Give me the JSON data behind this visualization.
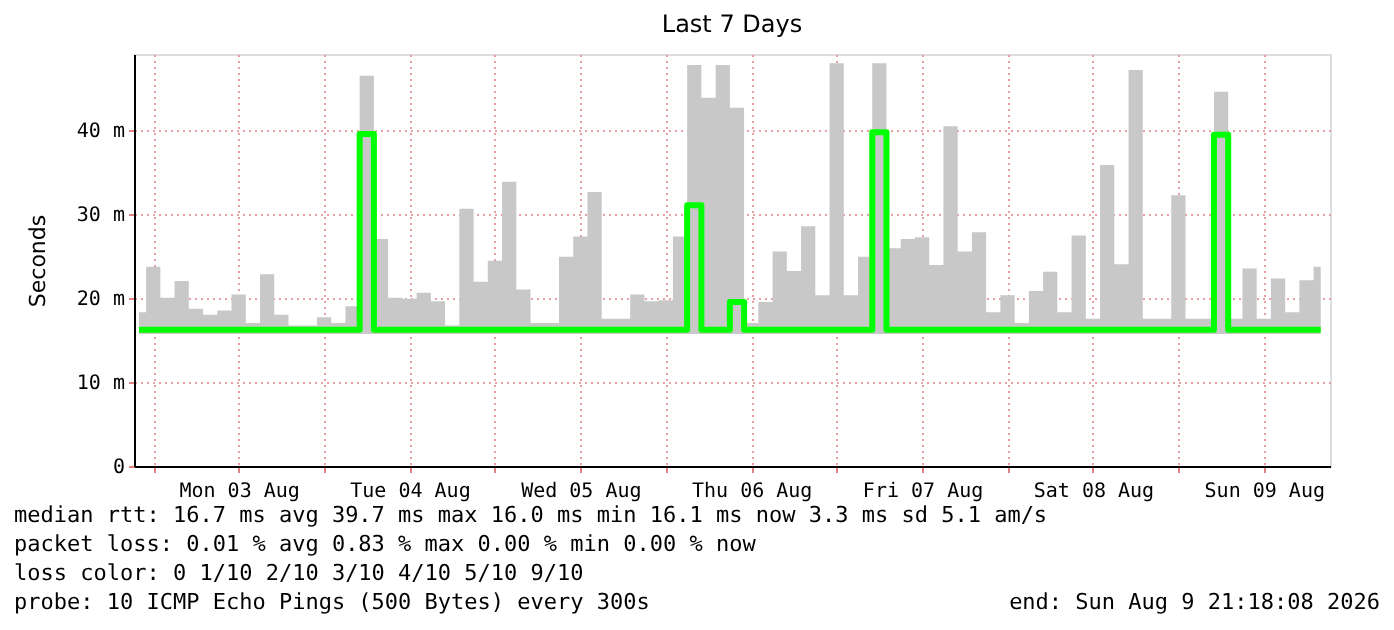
{
  "chart_data": {
    "type": "step",
    "title": "Last 7 Days",
    "ylabel": "Seconds",
    "xlim": [
      "2026-08-02T21:18",
      "2026-08-09T21:18"
    ],
    "xticks": [
      {
        "value": "2026-08-03T00:00",
        "label": null
      },
      {
        "value": "2026-08-03T12:00",
        "label": "Mon 03 Aug"
      },
      {
        "value": "2026-08-04T00:00",
        "label": null
      },
      {
        "value": "2026-08-04T12:00",
        "label": "Tue 04 Aug"
      },
      {
        "value": "2026-08-05T00:00",
        "label": null
      },
      {
        "value": "2026-08-05T12:00",
        "label": "Wed 05 Aug"
      },
      {
        "value": "2026-08-06T00:00",
        "label": null
      },
      {
        "value": "2026-08-06T12:00",
        "label": "Thu 06 Aug"
      },
      {
        "value": "2026-08-07T00:00",
        "label": null
      },
      {
        "value": "2026-08-07T12:00",
        "label": "Fri 07 Aug"
      },
      {
        "value": "2026-08-08T00:00",
        "label": null
      },
      {
        "value": "2026-08-08T12:00",
        "label": "Sat 08 Aug"
      },
      {
        "value": "2026-08-09T00:00",
        "label": null
      },
      {
        "value": "2026-08-09T12:00",
        "label": "Sun 09 Aug"
      }
    ],
    "ylim": [
      0,
      49
    ],
    "yticks": [
      {
        "value": 0,
        "label": "0"
      },
      {
        "value": 10,
        "label": "10 m"
      },
      {
        "value": 20,
        "label": "20 m"
      },
      {
        "value": 30,
        "label": "30 m"
      },
      {
        "value": 40,
        "label": "40 m"
      }
    ],
    "grid": true,
    "x": [
      "2026-08-02T22:00",
      "2026-08-03T00:00",
      "2026-08-03T02:00",
      "2026-08-03T04:00",
      "2026-08-03T06:00",
      "2026-08-03T08:00",
      "2026-08-03T10:00",
      "2026-08-03T12:00",
      "2026-08-03T14:00",
      "2026-08-03T16:00",
      "2026-08-03T18:00",
      "2026-08-03T20:00",
      "2026-08-03T22:00",
      "2026-08-04T00:00",
      "2026-08-04T02:00",
      "2026-08-04T04:00",
      "2026-08-04T06:00",
      "2026-08-04T08:00",
      "2026-08-04T10:00",
      "2026-08-04T12:00",
      "2026-08-04T14:00",
      "2026-08-04T16:00",
      "2026-08-04T18:00",
      "2026-08-04T20:00",
      "2026-08-04T22:00",
      "2026-08-05T00:00",
      "2026-08-05T02:00",
      "2026-08-05T04:00",
      "2026-08-05T06:00",
      "2026-08-05T08:00",
      "2026-08-05T10:00",
      "2026-08-05T12:00",
      "2026-08-05T14:00",
      "2026-08-05T16:00",
      "2026-08-05T18:00",
      "2026-08-05T20:00",
      "2026-08-05T22:00",
      "2026-08-06T00:00",
      "2026-08-06T02:00",
      "2026-08-06T04:00",
      "2026-08-06T06:00",
      "2026-08-06T08:00",
      "2026-08-06T10:00",
      "2026-08-06T12:00",
      "2026-08-06T14:00",
      "2026-08-06T16:00",
      "2026-08-06T18:00",
      "2026-08-06T20:00",
      "2026-08-06T22:00",
      "2026-08-07T00:00",
      "2026-08-07T02:00",
      "2026-08-07T04:00",
      "2026-08-07T06:00",
      "2026-08-07T08:00",
      "2026-08-07T10:00",
      "2026-08-07T12:00",
      "2026-08-07T14:00",
      "2026-08-07T16:00",
      "2026-08-07T18:00",
      "2026-08-07T20:00",
      "2026-08-07T22:00",
      "2026-08-08T00:00",
      "2026-08-08T02:00",
      "2026-08-08T04:00",
      "2026-08-08T06:00",
      "2026-08-08T08:00",
      "2026-08-08T10:00",
      "2026-08-08T12:00",
      "2026-08-08T14:00",
      "2026-08-08T16:00",
      "2026-08-08T18:00",
      "2026-08-08T20:00",
      "2026-08-08T22:00",
      "2026-08-09T00:00",
      "2026-08-09T02:00",
      "2026-08-09T04:00",
      "2026-08-09T06:00",
      "2026-08-09T08:00",
      "2026-08-09T10:00",
      "2026-08-09T12:00",
      "2026-08-09T14:00",
      "2026-08-09T16:00",
      "2026-08-09T18:00",
      "2026-08-09T20:00"
    ],
    "series": [
      {
        "color": "#00ff00",
        "values": [
          16.2,
          16.2,
          16.2,
          16.2,
          16.2,
          16.2,
          16.2,
          16.2,
          16.2,
          16.2,
          16.2,
          16.2,
          16.2,
          16.2,
          16.2,
          16.2,
          39.5,
          16.2,
          16.2,
          16.2,
          16.2,
          16.2,
          16.2,
          16.2,
          16.2,
          16.2,
          16.2,
          16.2,
          16.2,
          16.2,
          16.2,
          16.2,
          16.2,
          16.2,
          16.2,
          16.2,
          16.2,
          16.2,
          16.2,
          31,
          16.2,
          16.2,
          19.5,
          16.2,
          16.2,
          16.2,
          16.2,
          16.2,
          16.2,
          16.2,
          16.2,
          16.2,
          39.7,
          16.2,
          16.2,
          16.2,
          16.2,
          16.2,
          16.2,
          16.2,
          16.2,
          16.2,
          16.2,
          16.2,
          16.2,
          16.2,
          16.2,
          16.2,
          16.2,
          16.2,
          16.2,
          16.2,
          16.2,
          16.2,
          16.2,
          16.2,
          39.4,
          16.2,
          16.2,
          16.2,
          16.2,
          16.2,
          16.2,
          16.2
        ],
        "lower": [
          15.7,
          15.7,
          15.7,
          15.7,
          15.7,
          15.7,
          15.7,
          15.7,
          15.7,
          15.7,
          15.7,
          15.7,
          15.7,
          15.7,
          15.7,
          15.7,
          15.7,
          15.7,
          15.7,
          15.7,
          15.7,
          15.7,
          15.7,
          15.7,
          15.7,
          15.7,
          15.7,
          15.7,
          15.7,
          15.7,
          15.7,
          15.7,
          15.7,
          15.7,
          15.7,
          15.7,
          15.7,
          15.7,
          15.7,
          15.7,
          15.7,
          15.7,
          15.7,
          15.7,
          15.7,
          15.7,
          15.7,
          15.7,
          15.7,
          15.7,
          15.7,
          15.7,
          15.7,
          15.7,
          15.7,
          15.7,
          15.7,
          15.7,
          15.7,
          15.7,
          15.7,
          15.7,
          15.7,
          15.7,
          15.7,
          15.7,
          15.7,
          15.7,
          15.7,
          15.7,
          15.7,
          15.7,
          15.7,
          15.7,
          15.7,
          15.7,
          15.7,
          15.7,
          15.7,
          15.7,
          15.7,
          15.7,
          15.7,
          15.7
        ],
        "upper": [
          18.3,
          23.7,
          20,
          22,
          18.7,
          18,
          18.5,
          20.4,
          17,
          22.8,
          18,
          16.7,
          16.7,
          17.7,
          17,
          19,
          46.4,
          27,
          20,
          19.9,
          20.6,
          19.6,
          16.7,
          30.6,
          21.9,
          24.4,
          33.8,
          21,
          17,
          17,
          24.9,
          27.3,
          32.6,
          17.5,
          17.5,
          20.4,
          19.6,
          19.7,
          27.3,
          47.7,
          43.8,
          47.7,
          42.6,
          17,
          19.5,
          25.5,
          23.2,
          28.5,
          20.3,
          47.9,
          20.3,
          24.9,
          47.9,
          25.9,
          27,
          27.2,
          23.9,
          40.4,
          25.5,
          27.8,
          18.3,
          20.3,
          17,
          20.8,
          23.1,
          18.3,
          27.4,
          17.5,
          35.8,
          24,
          47.1,
          17.5,
          17.5,
          32.2,
          17.5,
          17.5,
          44.5,
          17.5,
          23.5,
          17.5,
          22.3,
          18.3,
          22.1,
          23.7
        ]
      }
    ],
    "annotations": [
      "median rtt:  16.7 ms avg  39.7 ms max  16.0 ms min  16.1 ms now  3.3 ms sd  5.1   am/s",
      "packet loss: 0.01 % avg  0.83 % max  0.00 % min  0.00 % now",
      "loss color:  0  1/10  2/10  3/10  4/10  5/10  9/10",
      "probe:        10 ICMP Echo Pings (500 Bytes) every 300s",
      "end: Sun Aug  9 21:18:08 2026"
    ]
  }
}
